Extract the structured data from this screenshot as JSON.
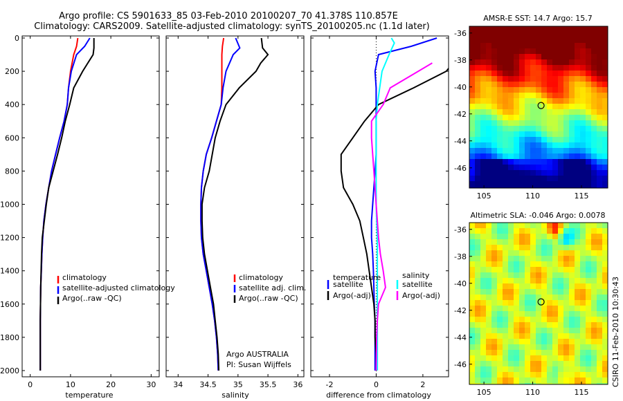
{
  "header": {
    "line1": "Argo profile: CS 5901633_85 03-Feb-2010 20100207_70 41.378S 110.857E",
    "line2": "Climatology: CARS2009. Satellite-adjusted climatology: synTS_20100205.nc (1.1d later)"
  },
  "credit": "CSIRO 11-Feb-2010 10:30:43",
  "colors": {
    "climatology": "#ff0000",
    "satellite": "#0000ff",
    "argo": "#000000",
    "salinity_satellite": "#00ffff",
    "salinity_argo": "#ff00ff"
  },
  "panels": {
    "temperature": {
      "xlabel": "temperature",
      "xticks": [
        "0",
        "10",
        "20",
        "30"
      ],
      "legend": [
        "climatology",
        "satellite-adjusted climatology",
        "Argo(..raw -QC)"
      ]
    },
    "salinity": {
      "xlabel": "salinity",
      "xticks": [
        "34",
        "34.5",
        "35",
        "35.5",
        "36"
      ],
      "legend": [
        "climatology",
        "satellite adj. clim.",
        "Argo(..raw -QC)"
      ],
      "note_line1": "Argo AUSTRALIA",
      "note_line2": "PI: Susan Wijffels"
    },
    "difference": {
      "xlabel": "difference from climatology",
      "xticks": [
        "-2",
        "0",
        "2"
      ],
      "temp_legend_title": "temperature",
      "temp_legend": [
        "satellite",
        "Argo(-adj)"
      ],
      "sal_legend_title": "salinity",
      "sal_legend": [
        "satellite",
        "Argo(-adj)"
      ]
    },
    "yticks": [
      "0",
      "200",
      "400",
      "600",
      "800",
      "1000",
      "1200",
      "1400",
      "1600",
      "1800",
      "2000"
    ]
  },
  "maps": {
    "sst": {
      "title": "AMSR-E SST: 14.7 Argo: 15.7",
      "yticks": [
        "-36",
        "-38",
        "-40",
        "-42",
        "-44",
        "-46"
      ],
      "xticks": [
        "105",
        "110",
        "115"
      ],
      "marker": [
        110.857,
        -41.378
      ]
    },
    "sla": {
      "title": "Altimetric SLA: -0.046 Argo: 0.0078",
      "yticks": [
        "-36",
        "-38",
        "-40",
        "-42",
        "-44",
        "-46"
      ],
      "xticks": [
        "105",
        "110",
        "115"
      ],
      "marker": [
        110.857,
        -41.378
      ]
    }
  },
  "chart_data": [
    {
      "type": "line",
      "title": "",
      "xlabel": "temperature",
      "ylabel": "",
      "xlim": [
        -2,
        32
      ],
      "ylim": [
        2050,
        0
      ],
      "series": [
        {
          "name": "climatology",
          "x": [
            11.8,
            11.5,
            10.8,
            10.0,
            9.5,
            9.2,
            8.4,
            7.3,
            6.3,
            5.3,
            4.6,
            3.9,
            3.4,
            3.1,
            2.9,
            2.75,
            2.6,
            2.55,
            2.5,
            2.5,
            2.5,
            2.5
          ],
          "y": [
            0,
            50,
            100,
            200,
            300,
            400,
            500,
            600,
            700,
            800,
            900,
            1000,
            1100,
            1200,
            1300,
            1400,
            1500,
            1600,
            1700,
            1800,
            1900,
            2000
          ]
        },
        {
          "name": "satellite-adjusted climatology",
          "x": [
            14.8,
            13.5,
            11.5,
            10.2,
            9.5,
            9.2,
            8.4,
            7.3,
            6.3,
            5.3,
            4.6,
            3.9,
            3.4,
            3.1,
            2.9,
            2.75,
            2.6,
            2.55,
            2.5,
            2.5,
            2.5,
            2.5
          ],
          "y": [
            0,
            50,
            100,
            200,
            300,
            400,
            500,
            600,
            700,
            800,
            900,
            1000,
            1100,
            1200,
            1300,
            1400,
            1500,
            1600,
            1700,
            1800,
            1900,
            2000
          ]
        },
        {
          "name": "Argo(..raw -QC)",
          "x": [
            15.8,
            15.8,
            15.6,
            13.0,
            10.8,
            9.8,
            8.7,
            7.8,
            6.8,
            5.7,
            4.6,
            4.0,
            3.5,
            3.0,
            2.8,
            2.7,
            2.6,
            2.55,
            2.5,
            2.5,
            2.5,
            2.5
          ],
          "y": [
            0,
            60,
            100,
            200,
            300,
            400,
            500,
            600,
            700,
            800,
            900,
            1000,
            1100,
            1200,
            1300,
            1400,
            1500,
            1600,
            1700,
            1800,
            1900,
            2000
          ]
        }
      ]
    },
    {
      "type": "line",
      "title": "",
      "xlabel": "salinity",
      "ylabel": "",
      "xlim": [
        33.8,
        36.1
      ],
      "ylim": [
        2050,
        0
      ],
      "series": [
        {
          "name": "climatology",
          "x": [
            34.76,
            34.74,
            34.73,
            34.73,
            34.73,
            34.72,
            34.64,
            34.56,
            34.47,
            34.42,
            34.39,
            34.38,
            34.38,
            34.39,
            34.42,
            34.47,
            34.52,
            34.57,
            34.61,
            34.64,
            34.66,
            34.67
          ],
          "y": [
            0,
            50,
            100,
            200,
            300,
            400,
            500,
            600,
            700,
            800,
            900,
            1000,
            1100,
            1200,
            1300,
            1400,
            1500,
            1600,
            1700,
            1800,
            1900,
            2000
          ]
        },
        {
          "name": "satellite adj. clim.",
          "x": [
            34.96,
            35.03,
            34.92,
            34.8,
            34.75,
            34.72,
            34.64,
            34.56,
            34.47,
            34.42,
            34.39,
            34.38,
            34.38,
            34.39,
            34.42,
            34.47,
            34.52,
            34.57,
            34.61,
            34.64,
            34.66,
            34.67
          ],
          "y": [
            0,
            60,
            100,
            200,
            300,
            400,
            500,
            600,
            700,
            800,
            900,
            1000,
            1100,
            1200,
            1300,
            1400,
            1500,
            1600,
            1700,
            1800,
            1900,
            2000
          ]
        },
        {
          "name": "Argo(..raw -QC)",
          "x": [
            35.39,
            35.41,
            35.5,
            35.38,
            35.3,
            35.02,
            34.8,
            34.7,
            34.62,
            34.52,
            34.44,
            34.4,
            34.4,
            34.41,
            34.44,
            34.49,
            34.54,
            34.59,
            34.62,
            34.65,
            34.67,
            34.68
          ],
          "y": [
            0,
            60,
            100,
            150,
            200,
            300,
            400,
            500,
            600,
            800,
            900,
            1000,
            1100,
            1200,
            1300,
            1400,
            1500,
            1600,
            1700,
            1800,
            1900,
            2000
          ]
        }
      ]
    },
    {
      "type": "line",
      "title": "",
      "xlabel": "difference from climatology",
      "ylabel": "",
      "xlim": [
        -2.8,
        3.1
      ],
      "ylim": [
        2050,
        0
      ],
      "series": [
        {
          "name": "temperature satellite",
          "x": [
            2.6,
            1.5,
            0.1,
            -0.05,
            0.0,
            0.0,
            0.0,
            0.0,
            0.0,
            -0.05,
            -0.1,
            -0.15,
            -0.2,
            -0.2,
            -0.15,
            -0.12,
            -0.1,
            -0.08,
            -0.05,
            -0.05,
            -0.05
          ],
          "y": [
            0,
            50,
            100,
            200,
            300,
            400,
            500,
            600,
            700,
            800,
            900,
            1000,
            1100,
            1200,
            1300,
            1400,
            1500,
            1600,
            1700,
            1800,
            2000
          ]
        },
        {
          "name": "temperature Argo(-adj)",
          "x": [
            3.3,
            3.0,
            1.6,
            0.1,
            -0.5,
            -1.0,
            -1.5,
            -1.5,
            -1.4,
            -1.0,
            -0.7,
            -0.55,
            -0.4,
            -0.3,
            -0.2,
            -0.1,
            -0.05,
            -0.05,
            0.0,
            0.0
          ],
          "y": [
            150,
            200,
            300,
            400,
            500,
            600,
            700,
            800,
            900,
            1000,
            1100,
            1200,
            1300,
            1400,
            1500,
            1600,
            1700,
            1800,
            1900,
            2000
          ]
        },
        {
          "name": "salinity satellite",
          "x": [
            0.65,
            0.78,
            0.55,
            0.25,
            0.15,
            0.05,
            0.0,
            0.0,
            0.0,
            0.0,
            0.0,
            0.0,
            0.02,
            0.05,
            0.05,
            0.05,
            0.05,
            0.05,
            0.05,
            0.05,
            0.05
          ],
          "y": [
            0,
            30,
            100,
            200,
            300,
            400,
            500,
            600,
            700,
            800,
            900,
            1000,
            1100,
            1200,
            1300,
            1400,
            1500,
            1600,
            1700,
            1800,
            2000
          ]
        },
        {
          "name": "salinity Argo(-adj)",
          "x": [
            2.4,
            1.8,
            0.6,
            0.3,
            -0.2,
            -0.2,
            -0.15,
            -0.1,
            -0.05,
            0.0,
            0.05,
            0.1,
            0.18,
            0.3,
            0.4,
            0.1,
            0.05,
            0.02,
            0.01,
            0.0
          ],
          "y": [
            150,
            200,
            300,
            400,
            500,
            600,
            700,
            800,
            900,
            1000,
            1100,
            1200,
            1300,
            1400,
            1500,
            1600,
            1700,
            1800,
            1900,
            2000
          ]
        }
      ]
    }
  ]
}
